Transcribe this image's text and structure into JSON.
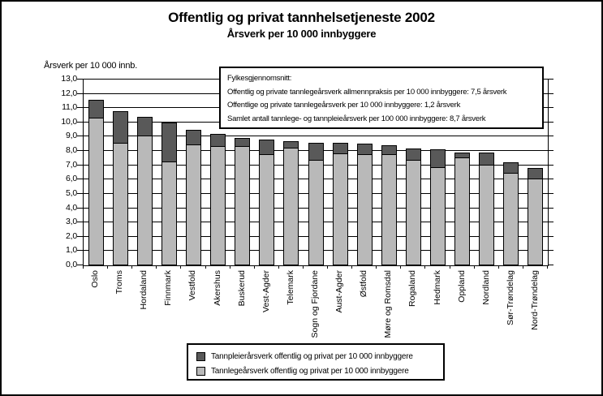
{
  "title": "Offentlig og privat tannhelsetjeneste 2002",
  "subtitle": "Årsverk per 10 000 innbyggere",
  "y_axis_title": "Årsverk per 10 000 innb.",
  "annotation": {
    "heading": "Fylkesgjennomsnitt:",
    "lines": [
      "Offentlig og private tannlegeårsverk allmennpraksis per 10 000 innbyggere: 7,5 årsverk",
      "Offentlige og private tannlegeårsverk per 10 000 innbyggere: 1,2 årsverk",
      "Samlet antall tannlege- og tannpleieårsverk per 100 000 innbyggere: 8,7 årsverk"
    ]
  },
  "legend": [
    {
      "label": "Tannpleierårsverk offentlig og privat per 10 000 innbyggere",
      "color": "#595959"
    },
    {
      "label": "Tannlegeårsverk offentlig og privat per 10 000 innbyggere",
      "color": "#b9b9b9"
    }
  ],
  "chart_data": {
    "type": "bar",
    "stacked": true,
    "title": "Offentlig og privat tannhelsetjeneste 2002",
    "subtitle": "Årsverk per 10 000 innbyggere",
    "ylabel": "Årsverk per 10 000 innb.",
    "ylim": [
      0,
      13
    ],
    "ytick_step": 1.0,
    "ytick_decimal": "comma",
    "grid": true,
    "legend_position": "bottom",
    "categories": [
      "Oslo",
      "Troms",
      "Hordaland",
      "Finnmark",
      "Vestfold",
      "Akershus",
      "Buskerud",
      "Vest-Agder",
      "Telemark",
      "Sogn og Fjordane",
      "Aust-Agder",
      "Østfold",
      "Møre og Romsdal",
      "Rogaland",
      "Hedmark",
      "Oppland",
      "Nordland",
      "Sør-Trøndelag",
      "Nord-Trøndelag"
    ],
    "series": [
      {
        "name": "Tannlegeårsverk offentlig og privat per 10 000 innbyggere",
        "color": "#b9b9b9",
        "values": [
          10.3,
          8.5,
          9.0,
          7.2,
          8.4,
          8.3,
          8.3,
          7.7,
          8.2,
          7.3,
          7.8,
          7.7,
          7.7,
          7.3,
          6.8,
          7.5,
          7.0,
          6.4,
          6.0
        ]
      },
      {
        "name": "Tannpleierårsverk offentlig og privat per 10 000 innbyggere",
        "color": "#595959",
        "values": [
          1.3,
          2.3,
          1.4,
          2.8,
          1.1,
          0.9,
          0.6,
          1.1,
          0.5,
          1.3,
          0.8,
          0.8,
          0.7,
          0.9,
          1.3,
          0.4,
          0.9,
          0.8,
          0.8
        ]
      }
    ]
  }
}
